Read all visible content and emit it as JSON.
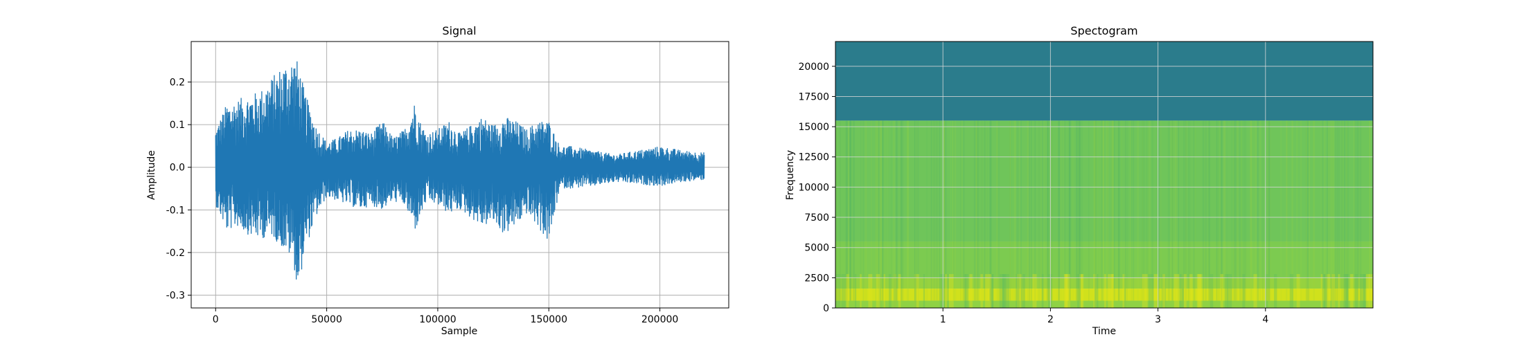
{
  "chart_data": [
    {
      "type": "line",
      "title": "Signal",
      "xlabel": "Sample",
      "ylabel": "Amplitude",
      "xlim": [
        -11000,
        231000
      ],
      "ylim": [
        -0.33,
        0.295
      ],
      "xticks": [
        0,
        50000,
        100000,
        150000,
        200000
      ],
      "yticks": [
        -0.3,
        -0.2,
        -0.1,
        0.0,
        0.1,
        0.2
      ],
      "grid": true,
      "series": [
        {
          "color": "#1f77b4",
          "x": [
            0,
            5000,
            10000,
            15000,
            20000,
            25000,
            30000,
            35000,
            37000,
            40000,
            45000,
            50000,
            55000,
            60000,
            65000,
            70000,
            75000,
            80000,
            85000,
            90000,
            92000,
            95000,
            100000,
            105000,
            110000,
            115000,
            120000,
            125000,
            130000,
            135000,
            140000,
            145000,
            150000,
            155000,
            160000,
            170000,
            180000,
            190000,
            200000,
            210000,
            220000
          ],
          "upper": [
            0.09,
            0.15,
            0.16,
            0.17,
            0.18,
            0.21,
            0.24,
            0.26,
            0.25,
            0.18,
            0.1,
            0.06,
            0.07,
            0.09,
            0.09,
            0.08,
            0.11,
            0.07,
            0.09,
            0.16,
            0.11,
            0.08,
            0.09,
            0.11,
            0.08,
            0.1,
            0.12,
            0.1,
            0.12,
            0.11,
            0.09,
            0.11,
            0.11,
            0.05,
            0.05,
            0.04,
            0.03,
            0.04,
            0.05,
            0.04,
            0.035
          ],
          "lower": [
            -0.09,
            -0.15,
            -0.14,
            -0.16,
            -0.17,
            -0.16,
            -0.19,
            -0.22,
            -0.3,
            -0.2,
            -0.12,
            -0.07,
            -0.08,
            -0.09,
            -0.1,
            -0.09,
            -0.1,
            -0.08,
            -0.09,
            -0.15,
            -0.12,
            -0.08,
            -0.09,
            -0.11,
            -0.1,
            -0.12,
            -0.14,
            -0.13,
            -0.16,
            -0.14,
            -0.11,
            -0.14,
            -0.18,
            -0.05,
            -0.05,
            -0.045,
            -0.035,
            -0.04,
            -0.045,
            -0.035,
            -0.03
          ]
        }
      ]
    },
    {
      "type": "heatmap",
      "title": "Spectogram",
      "xlabel": "Time",
      "ylabel": "Frequency",
      "xlim": [
        0,
        5.0
      ],
      "ylim": [
        0,
        22050
      ],
      "xticks": [
        1,
        2,
        3,
        4
      ],
      "yticks": [
        0,
        2500,
        5000,
        7500,
        10000,
        12500,
        15000,
        17500,
        20000
      ],
      "grid": true,
      "colormap": "viridis",
      "bands": [
        {
          "from": 15500,
          "to": 22050,
          "color": "#2b7c8c"
        },
        {
          "from": 5500,
          "to": 15500,
          "color": "#6fc55a"
        },
        {
          "from": 2500,
          "to": 5500,
          "color": "#7ccb50"
        },
        {
          "from": 1600,
          "to": 2500,
          "color": "#96d23f"
        },
        {
          "from": 600,
          "to": 1600,
          "color": "#d0e11c"
        },
        {
          "from": 0,
          "to": 600,
          "color": "#8fd244"
        }
      ]
    }
  ]
}
